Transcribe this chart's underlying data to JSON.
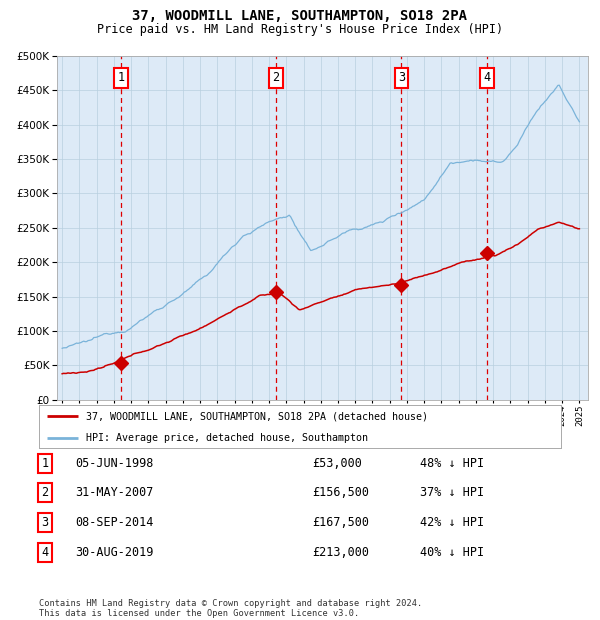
{
  "title": "37, WOODMILL LANE, SOUTHAMPTON, SO18 2PA",
  "subtitle": "Price paid vs. HM Land Registry's House Price Index (HPI)",
  "footer": "Contains HM Land Registry data © Crown copyright and database right 2024.\nThis data is licensed under the Open Government Licence v3.0.",
  "legend_line1": "37, WOODMILL LANE, SOUTHAMPTON, SO18 2PA (detached house)",
  "legend_line2": "HPI: Average price, detached house, Southampton",
  "transactions": [
    {
      "num": 1,
      "date": "05-JUN-1998",
      "price": 53000,
      "pct": "48%",
      "year_x": 1998.43
    },
    {
      "num": 2,
      "date": "31-MAY-2007",
      "price": 156500,
      "pct": "37%",
      "year_x": 2007.41
    },
    {
      "num": 3,
      "date": "08-SEP-2014",
      "price": 167500,
      "pct": "42%",
      "year_x": 2014.68
    },
    {
      "num": 4,
      "date": "30-AUG-2019",
      "price": 213000,
      "pct": "40%",
      "year_x": 2019.66
    }
  ],
  "hpi_color": "#7ab3d9",
  "price_color": "#cc0000",
  "bg_color": "#ddeaf7",
  "plot_bg": "#ffffff",
  "grid_color": "#b8cfe0",
  "dashed_color": "#dd0000",
  "ylim": [
    0,
    500000
  ],
  "yticks": [
    0,
    50000,
    100000,
    150000,
    200000,
    250000,
    300000,
    350000,
    400000,
    450000,
    500000
  ],
  "xmin": 1995,
  "xmax": 2025,
  "hpi_waypoints_t": [
    0.0,
    0.05,
    0.12,
    0.2,
    0.28,
    0.35,
    0.4,
    0.44,
    0.48,
    0.55,
    0.62,
    0.7,
    0.75,
    0.8,
    0.85,
    0.88,
    0.92,
    0.96,
    1.0
  ],
  "hpi_waypoints_v": [
    75000,
    82000,
    100000,
    140000,
    180000,
    240000,
    260000,
    270000,
    215000,
    245000,
    260000,
    295000,
    350000,
    360000,
    355000,
    380000,
    430000,
    465000,
    410000
  ],
  "price_waypoints_t": [
    0.0,
    0.05,
    0.1,
    0.18,
    0.26,
    0.33,
    0.38,
    0.42,
    0.46,
    0.52,
    0.58,
    0.65,
    0.72,
    0.78,
    0.84,
    0.88,
    0.92,
    0.96,
    1.0
  ],
  "price_waypoints_v": [
    38000,
    42000,
    52000,
    75000,
    100000,
    130000,
    150000,
    155000,
    130000,
    148000,
    160000,
    168000,
    185000,
    200000,
    210000,
    225000,
    248000,
    258000,
    248000
  ]
}
